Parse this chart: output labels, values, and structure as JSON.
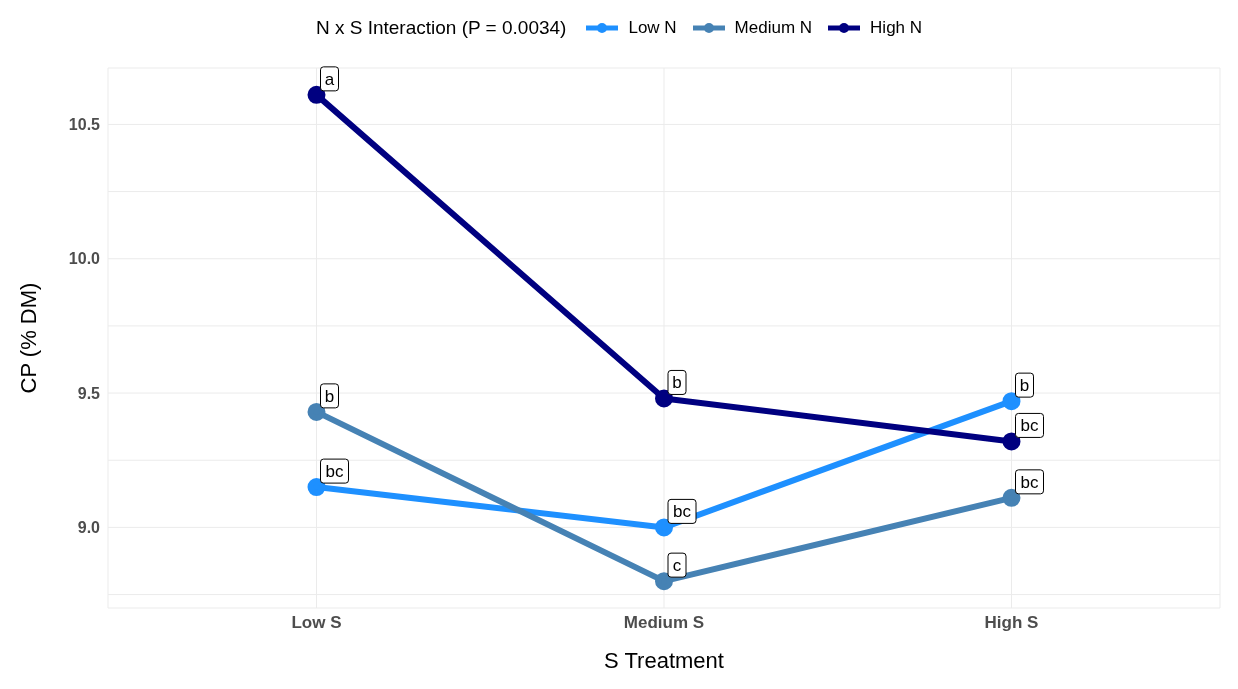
{
  "chart_data": {
    "type": "line",
    "legend_title": "N x S Interaction (P = 0.0034)",
    "xlabel": "S Treatment",
    "ylabel": "CP (% DM)",
    "categories": [
      "Low S",
      "Medium S",
      "High S"
    ],
    "series": [
      {
        "name": "Low N",
        "color": "#1e90ff",
        "values": [
          9.15,
          9.0,
          9.47
        ]
      },
      {
        "name": "Medium N",
        "color": "#4682b4",
        "values": [
          9.43,
          8.8,
          9.11
        ]
      },
      {
        "name": "High N",
        "color": "#000080",
        "values": [
          10.61,
          9.48,
          9.32
        ]
      }
    ],
    "ylim": [
      8.7,
      10.71
    ],
    "yticks": [
      {
        "value": 8.75,
        "label": null
      },
      {
        "value": 9,
        "label": "9.0"
      },
      {
        "value": 9.25,
        "label": null
      },
      9.5,
      {
        "value": 9.75,
        "label": null
      },
      {
        "value": 10,
        "label": "10.0"
      },
      {
        "value": 10.25,
        "label": null
      },
      10.5
    ],
    "grid": true,
    "legend": "top",
    "marker": "circle",
    "line_style": "solid",
    "annotations": [
      {
        "text": "bc",
        "x": "Low S",
        "y": 9.15
      },
      {
        "text": "b",
        "x": "Low S",
        "y": 9.43
      },
      {
        "text": "a",
        "x": "Low S",
        "y": 10.61
      },
      {
        "text": "bc",
        "x": "Medium S",
        "y": 9.0
      },
      {
        "text": "c",
        "x": "Medium S",
        "y": 8.8
      },
      {
        "text": "b",
        "x": "Medium S",
        "y": 9.48
      },
      {
        "text": "b",
        "x": "High S",
        "y": 9.47
      },
      {
        "text": "bc",
        "x": "High S",
        "y": 9.11
      },
      {
        "text": "bc",
        "x": "High S",
        "y": 9.32
      }
    ]
  }
}
